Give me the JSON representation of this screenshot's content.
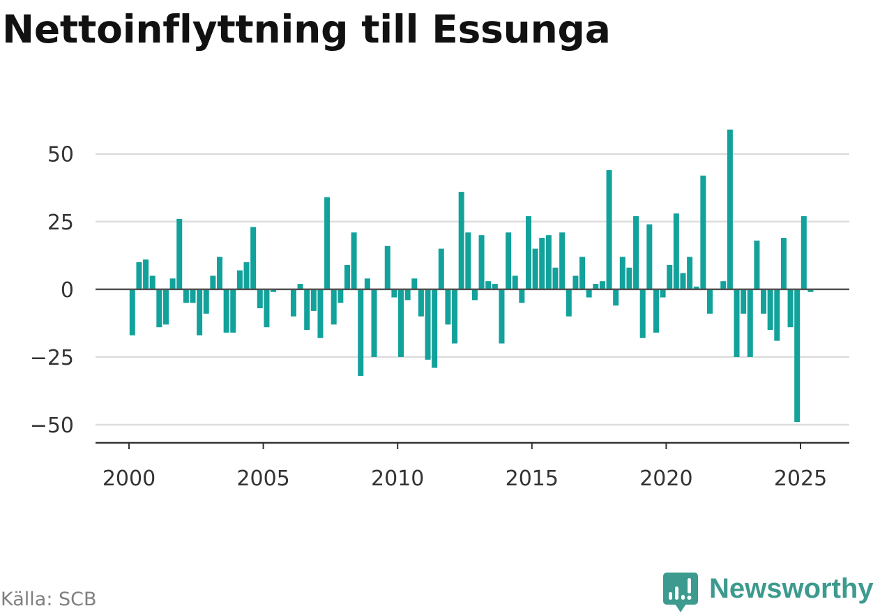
{
  "source": "Källa: SCB",
  "logo": {
    "text": "Newsworthy",
    "icon": "newsworthy-chart-bubble-icon"
  },
  "colors": {
    "bar": "#12a29b",
    "grid": "#dddddd",
    "zero_line": "#505050",
    "axis": "#333333",
    "brand": "#3d9a8e"
  },
  "chart_data": {
    "type": "bar",
    "title": "Nettoinflyttning till Essunga",
    "ylim": [
      -56.7,
      61
    ],
    "grid": true,
    "legend": "none",
    "yticks": [
      {
        "value": 50,
        "label": "50"
      },
      {
        "value": 25,
        "label": "25"
      },
      {
        "value": 0,
        "label": "0"
      },
      {
        "value": -25,
        "label": "−25"
      },
      {
        "value": -50,
        "label": "−50"
      }
    ],
    "xticks": [
      "2000",
      "2005",
      "2010",
      "2015",
      "2020",
      "2025"
    ],
    "x": [
      "2000-Q1",
      "2000-Q2",
      "2000-Q3",
      "2000-Q4",
      "2001-Q1",
      "2001-Q2",
      "2001-Q3",
      "2001-Q4",
      "2002-Q1",
      "2002-Q2",
      "2002-Q3",
      "2002-Q4",
      "2003-Q1",
      "2003-Q2",
      "2003-Q3",
      "2003-Q4",
      "2004-Q1",
      "2004-Q2",
      "2004-Q3",
      "2004-Q4",
      "2005-Q1",
      "2005-Q2",
      "2005-Q3",
      "2005-Q4",
      "2006-Q1",
      "2006-Q2",
      "2006-Q3",
      "2006-Q4",
      "2007-Q1",
      "2007-Q2",
      "2007-Q3",
      "2007-Q4",
      "2008-Q1",
      "2008-Q2",
      "2008-Q3",
      "2008-Q4",
      "2009-Q1",
      "2009-Q2",
      "2009-Q3",
      "2009-Q4",
      "2010-Q1",
      "2010-Q2",
      "2010-Q3",
      "2010-Q4",
      "2011-Q1",
      "2011-Q2",
      "2011-Q3",
      "2011-Q4",
      "2012-Q1",
      "2012-Q2",
      "2012-Q3",
      "2012-Q4",
      "2013-Q1",
      "2013-Q2",
      "2013-Q3",
      "2013-Q4",
      "2014-Q1",
      "2014-Q2",
      "2014-Q3",
      "2014-Q4",
      "2015-Q1",
      "2015-Q2",
      "2015-Q3",
      "2015-Q4",
      "2016-Q1",
      "2016-Q2",
      "2016-Q3",
      "2016-Q4",
      "2017-Q1",
      "2017-Q2",
      "2017-Q3",
      "2017-Q4",
      "2018-Q1",
      "2018-Q2",
      "2018-Q3",
      "2018-Q4",
      "2019-Q1",
      "2019-Q2",
      "2019-Q3",
      "2019-Q4",
      "2020-Q1",
      "2020-Q2",
      "2020-Q3",
      "2020-Q4",
      "2021-Q1",
      "2021-Q2",
      "2021-Q3",
      "2021-Q4",
      "2022-Q1",
      "2022-Q2",
      "2022-Q3",
      "2022-Q4",
      "2023-Q1",
      "2023-Q2",
      "2023-Q3",
      "2023-Q4",
      "2024-Q1",
      "2024-Q2",
      "2024-Q3",
      "2024-Q4",
      "2025-Q1",
      "2025-Q2"
    ],
    "y": [
      -17,
      10,
      11,
      5,
      -14,
      -13,
      4,
      26,
      -5,
      -5,
      -17,
      -9,
      5,
      12,
      -16,
      -16,
      7,
      10,
      23,
      -7,
      -14,
      -1,
      0,
      0,
      -10,
      2,
      -15,
      -8,
      -18,
      34,
      -13,
      -5,
      9,
      21,
      -32,
      4,
      -25,
      0,
      16,
      -3,
      -25,
      -4,
      4,
      -10,
      -26,
      -29,
      15,
      -13,
      -20,
      36,
      21,
      -4,
      20,
      3,
      2,
      -20,
      21,
      5,
      -5,
      27,
      15,
      19,
      20,
      8,
      21,
      -10,
      5,
      12,
      -3,
      2,
      3,
      44,
      -6,
      12,
      8,
      27,
      -18,
      24,
      -16,
      -3,
      9,
      28,
      6,
      12,
      1,
      42,
      -9,
      0,
      3,
      59,
      -25,
      -9,
      -25,
      18,
      -9,
      -15,
      -19,
      19,
      -14,
      -49,
      27,
      -1
    ]
  }
}
